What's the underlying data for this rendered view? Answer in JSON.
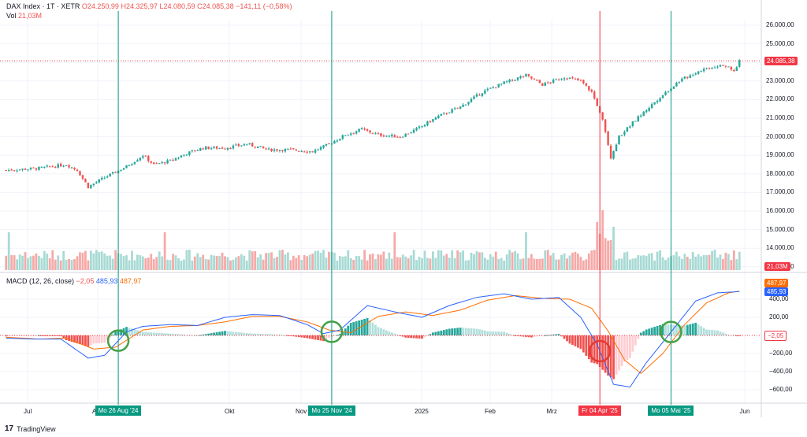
{
  "header": {
    "symbol": "DAX Index · 1T · XETR",
    "open": "O24.250,99",
    "high": "H24.325,97",
    "low": "L24.080,59",
    "close": "C24.085,38",
    "change": "−141,11 (−0,58%)",
    "vol_label": "Vol",
    "vol_value": "21,03M"
  },
  "macd_header": {
    "title": "MACD (12, 26, close)",
    "hist": "−2,05",
    "macd": "485,93",
    "signal": "487,97"
  },
  "price_axis": [
    "26.000,00",
    "25.000,00",
    "24.000,00",
    "23.000,00",
    "22.000,00",
    "21.000,00",
    "20.000,00",
    "19.000,00",
    "18.000,00",
    "17.000,00",
    "16.000,00",
    "15.000,00",
    "14.000,00",
    "13.000,00"
  ],
  "macd_axis": [
    "400,00",
    "200,00",
    "−200,00",
    "−400,00",
    "−600,00"
  ],
  "tags": {
    "last_price": "24.085,38",
    "volume": "21,03M",
    "signal": "487,97",
    "macd": "485,93",
    "hist": "−2,05"
  },
  "time_axis": [
    "Jul",
    "Aug",
    "Okt",
    "Nov",
    "2025",
    "Feb",
    "Mrz",
    "Jun"
  ],
  "markers": [
    {
      "label": "Mo 26 Aug '24",
      "color": "#089981"
    },
    {
      "label": "Mo 25 Nov '24",
      "color": "#089981"
    },
    {
      "label": "Fr 04 Apr '25",
      "color": "#f23645"
    },
    {
      "label": "Mo 05 Mai '25",
      "color": "#089981"
    }
  ],
  "brand": "TradingView",
  "colors": {
    "up": "#26a69a",
    "down": "#ef5350",
    "macd": "#2962ff",
    "signal": "#ff6d00",
    "circle_green": "#43a047",
    "circle_red": "#e53935"
  },
  "chart_data": {
    "type": "candlestick",
    "price_keypoints": [
      [
        0,
        18200
      ],
      [
        12,
        18300
      ],
      [
        22,
        18500
      ],
      [
        26,
        18200
      ],
      [
        30,
        17300
      ],
      [
        36,
        17800
      ],
      [
        44,
        18400
      ],
      [
        50,
        19000
      ],
      [
        54,
        18500
      ],
      [
        60,
        18700
      ],
      [
        66,
        19100
      ],
      [
        72,
        19400
      ],
      [
        80,
        19400
      ],
      [
        88,
        19600
      ],
      [
        96,
        19300
      ],
      [
        104,
        19300
      ],
      [
        112,
        19200
      ],
      [
        118,
        19600
      ],
      [
        124,
        20100
      ],
      [
        130,
        20400
      ],
      [
        136,
        20100
      ],
      [
        144,
        20000
      ],
      [
        150,
        20400
      ],
      [
        158,
        21100
      ],
      [
        166,
        21600
      ],
      [
        174,
        22400
      ],
      [
        182,
        22900
      ],
      [
        190,
        23300
      ],
      [
        196,
        22800
      ],
      [
        204,
        23200
      ],
      [
        210,
        23000
      ],
      [
        214,
        22400
      ],
      [
        218,
        21000
      ],
      [
        221,
        18900
      ],
      [
        224,
        20000
      ],
      [
        230,
        20900
      ],
      [
        238,
        22000
      ],
      [
        246,
        23000
      ],
      [
        254,
        23600
      ],
      [
        262,
        23900
      ],
      [
        266,
        23500
      ],
      [
        268,
        24085
      ]
    ],
    "macd_keypoints": [
      [
        0,
        -30
      ],
      [
        10,
        -40
      ],
      [
        20,
        -40
      ],
      [
        30,
        -250
      ],
      [
        36,
        -220
      ],
      [
        44,
        40
      ],
      [
        50,
        100
      ],
      [
        60,
        120
      ],
      [
        70,
        110
      ],
      [
        80,
        200
      ],
      [
        90,
        230
      ],
      [
        100,
        220
      ],
      [
        110,
        120
      ],
      [
        116,
        20
      ],
      [
        122,
        60
      ],
      [
        132,
        330
      ],
      [
        142,
        260
      ],
      [
        152,
        200
      ],
      [
        162,
        330
      ],
      [
        172,
        420
      ],
      [
        182,
        460
      ],
      [
        192,
        400
      ],
      [
        202,
        420
      ],
      [
        210,
        200
      ],
      [
        216,
        -100
      ],
      [
        222,
        -540
      ],
      [
        228,
        -570
      ],
      [
        234,
        -300
      ],
      [
        242,
        0
      ],
      [
        252,
        380
      ],
      [
        260,
        470
      ],
      [
        268,
        485
      ]
    ],
    "signal_keypoints": [
      [
        0,
        -20
      ],
      [
        12,
        -40
      ],
      [
        22,
        -30
      ],
      [
        32,
        -150
      ],
      [
        40,
        -130
      ],
      [
        50,
        60
      ],
      [
        60,
        100
      ],
      [
        70,
        110
      ],
      [
        80,
        150
      ],
      [
        90,
        210
      ],
      [
        100,
        210
      ],
      [
        110,
        150
      ],
      [
        118,
        60
      ],
      [
        126,
        30
      ],
      [
        136,
        210
      ],
      [
        146,
        260
      ],
      [
        156,
        220
      ],
      [
        166,
        280
      ],
      [
        176,
        390
      ],
      [
        186,
        440
      ],
      [
        196,
        410
      ],
      [
        206,
        400
      ],
      [
        214,
        300
      ],
      [
        220,
        50
      ],
      [
        226,
        -270
      ],
      [
        232,
        -420
      ],
      [
        240,
        -200
      ],
      [
        248,
        120
      ],
      [
        256,
        360
      ],
      [
        264,
        470
      ],
      [
        268,
        488
      ]
    ],
    "volume_note": "daily volume bars",
    "marker_bars": [
      41,
      119,
      217,
      243
    ]
  }
}
